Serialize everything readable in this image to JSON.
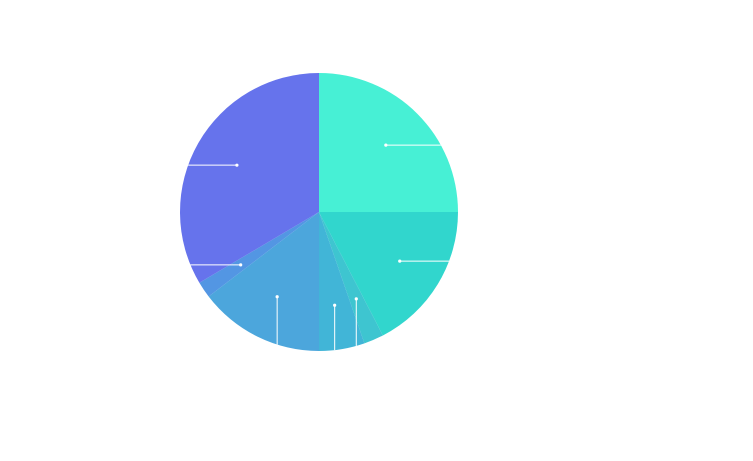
{
  "chart_data": {
    "type": "pie",
    "title": "",
    "legend": "none",
    "start_angle_deg": 0,
    "direction": "clockwise",
    "slices": [
      {
        "value": 25.0,
        "color": "#47f0d5"
      },
      {
        "value": 17.4,
        "color": "#31d6cd"
      },
      {
        "value": 2.3,
        "color": "#3ec5d0"
      },
      {
        "value": 5.3,
        "color": "#41b5d7"
      },
      {
        "value": 14.6,
        "color": "#4ca6dc"
      },
      {
        "value": 1.9,
        "color": "#5396e3"
      },
      {
        "value": 33.5,
        "color": "#6673ec"
      }
    ]
  }
}
